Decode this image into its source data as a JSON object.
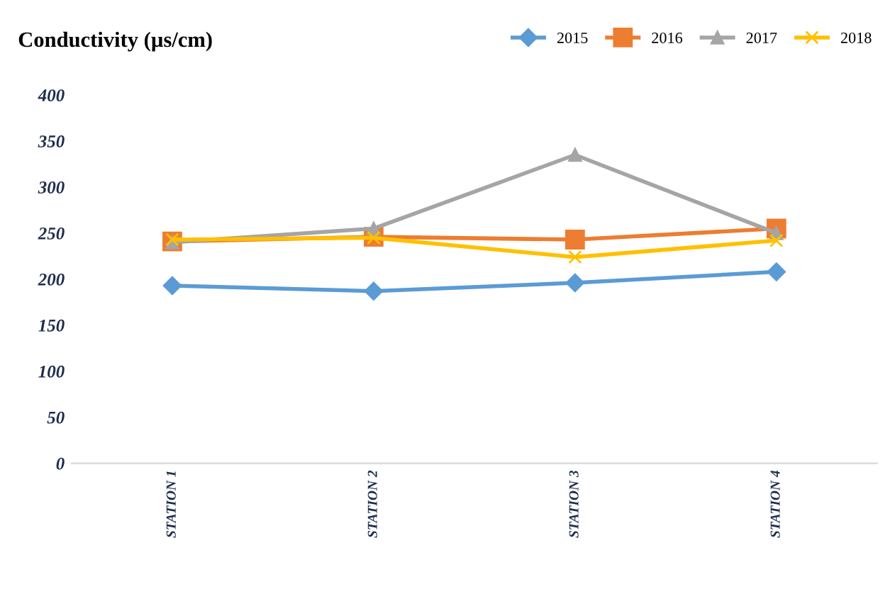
{
  "chart_data": {
    "type": "line",
    "title": "Conductivity (µs/cm)",
    "categories": [
      "STATION 1",
      "STATION 2",
      "STATION 3",
      "STATION 4"
    ],
    "series": [
      {
        "name": "2015",
        "color": "#5b9bd5",
        "marker": "diamond",
        "values": [
          193,
          187,
          196,
          208
        ]
      },
      {
        "name": "2016",
        "color": "#ed7d31",
        "marker": "square",
        "values": [
          241,
          246,
          243,
          255
        ]
      },
      {
        "name": "2017",
        "color": "#a5a5a5",
        "marker": "triangle",
        "values": [
          240,
          255,
          335,
          250
        ]
      },
      {
        "name": "2018",
        "color": "#ffc000",
        "marker": "cross",
        "values": [
          243,
          245,
          224,
          242
        ]
      }
    ],
    "ylim": [
      0,
      400
    ],
    "yticks": [
      0,
      50,
      100,
      150,
      200,
      250,
      300,
      350,
      400
    ],
    "grid": false,
    "legend": "top right"
  }
}
